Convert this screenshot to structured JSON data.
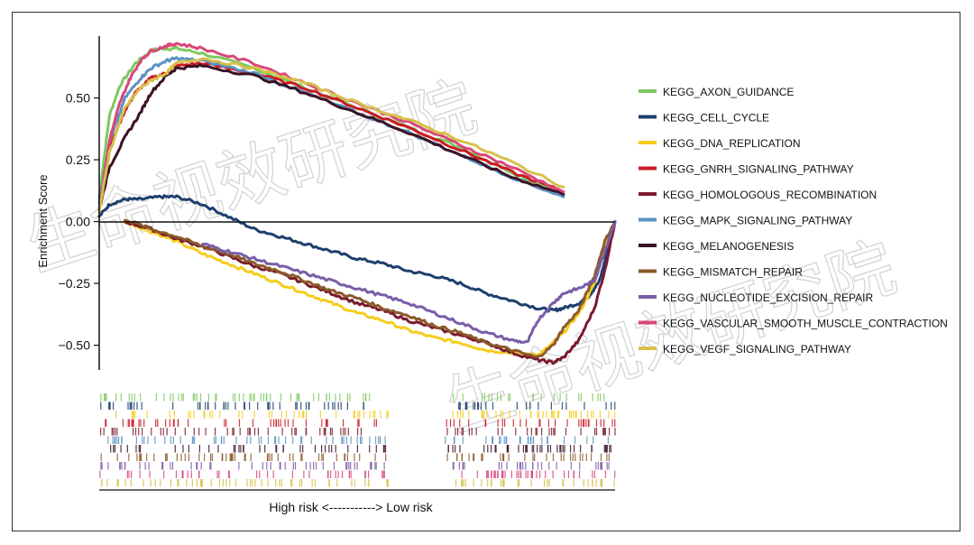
{
  "chart_data": {
    "type": "line",
    "ylabel": "Enrichment Score",
    "ylim": [
      -0.6,
      0.75
    ],
    "yticks": [
      "0.50",
      "0.25",
      "0.00",
      "−0.25",
      "−0.50"
    ],
    "ytick_values": [
      0.5,
      0.25,
      0.0,
      -0.25,
      -0.5
    ],
    "x_caption": "High risk <-----------> Low risk",
    "xlim": [
      0,
      1
    ],
    "legend_position": "right",
    "watermark": "生命视效研究院",
    "series": [
      {
        "name": "KEGG_AXON_GUIDANCE",
        "color": "#7dc95e",
        "x": [
          0,
          0.02,
          0.04,
          0.07,
          0.1,
          0.12,
          0.15,
          0.2,
          0.3,
          0.4,
          0.5,
          0.6,
          0.7,
          0.8,
          0.9
        ],
        "y": [
          0.1,
          0.43,
          0.55,
          0.64,
          0.69,
          0.7,
          0.7,
          0.68,
          0.62,
          0.54,
          0.46,
          0.38,
          0.3,
          0.2,
          0.11
        ]
      },
      {
        "name": "KEGG_CELL_CYCLE",
        "color": "#1e3f6e",
        "x": [
          0,
          0.02,
          0.05,
          0.08,
          0.12,
          0.15,
          0.2,
          0.25,
          0.3,
          0.35,
          0.4,
          0.45,
          0.5,
          0.55,
          0.6,
          0.65,
          0.7,
          0.75,
          0.8,
          0.85,
          0.88,
          0.9,
          0.93,
          0.95,
          0.97,
          0.985,
          1.0
        ],
        "y": [
          0.02,
          0.07,
          0.09,
          0.09,
          0.1,
          0.1,
          0.07,
          0.02,
          -0.03,
          -0.06,
          -0.09,
          -0.12,
          -0.15,
          -0.17,
          -0.2,
          -0.22,
          -0.25,
          -0.29,
          -0.32,
          -0.35,
          -0.36,
          -0.35,
          -0.33,
          -0.3,
          -0.24,
          -0.12,
          0.0
        ]
      },
      {
        "name": "KEGG_DNA_REPLICATION",
        "color": "#f5cd1e",
        "x": [
          0.05,
          0.1,
          0.15,
          0.2,
          0.25,
          0.3,
          0.35,
          0.4,
          0.45,
          0.5,
          0.55,
          0.6,
          0.65,
          0.7,
          0.75,
          0.8,
          0.85,
          0.87,
          0.9,
          0.93,
          0.96,
          0.98,
          1.0
        ],
        "y": [
          0.0,
          -0.04,
          -0.08,
          -0.13,
          -0.17,
          -0.21,
          -0.25,
          -0.29,
          -0.33,
          -0.37,
          -0.4,
          -0.44,
          -0.47,
          -0.49,
          -0.52,
          -0.53,
          -0.54,
          -0.51,
          -0.45,
          -0.37,
          -0.25,
          -0.1,
          0.0
        ]
      },
      {
        "name": "KEGG_GNRH_SIGNALING_PATHWAY",
        "color": "#cc1a24",
        "x": [
          0,
          0.02,
          0.05,
          0.07,
          0.1,
          0.13,
          0.15,
          0.2,
          0.3,
          0.4,
          0.5,
          0.6,
          0.7,
          0.8,
          0.9
        ],
        "y": [
          0.05,
          0.3,
          0.45,
          0.52,
          0.58,
          0.6,
          0.63,
          0.64,
          0.6,
          0.54,
          0.46,
          0.38,
          0.29,
          0.2,
          0.12
        ]
      },
      {
        "name": "KEGG_HOMOLOGOUS_RECOMBINATION",
        "color": "#7a1a2e",
        "x": [
          0.05,
          0.1,
          0.15,
          0.2,
          0.25,
          0.3,
          0.35,
          0.4,
          0.45,
          0.5,
          0.55,
          0.6,
          0.65,
          0.7,
          0.75,
          0.8,
          0.85,
          0.88,
          0.9,
          0.93,
          0.96,
          0.98,
          1.0
        ],
        "y": [
          0.0,
          -0.03,
          -0.07,
          -0.1,
          -0.14,
          -0.18,
          -0.21,
          -0.25,
          -0.29,
          -0.33,
          -0.36,
          -0.4,
          -0.43,
          -0.46,
          -0.49,
          -0.53,
          -0.56,
          -0.57,
          -0.55,
          -0.48,
          -0.35,
          -0.2,
          0.0
        ]
      },
      {
        "name": "KEGG_MAPK_SIGNALING_PATHWAY",
        "color": "#5b92c4",
        "x": [
          0,
          0.02,
          0.05,
          0.08,
          0.1,
          0.13,
          0.15,
          0.2,
          0.3,
          0.4,
          0.5,
          0.6,
          0.7,
          0.8,
          0.9
        ],
        "y": [
          0.08,
          0.32,
          0.5,
          0.58,
          0.62,
          0.65,
          0.66,
          0.65,
          0.6,
          0.52,
          0.44,
          0.36,
          0.27,
          0.18,
          0.1
        ]
      },
      {
        "name": "KEGG_MELANOGENESIS",
        "color": "#3a1225",
        "x": [
          0,
          0.02,
          0.05,
          0.08,
          0.1,
          0.13,
          0.15,
          0.2,
          0.3,
          0.4,
          0.5,
          0.6,
          0.7,
          0.8,
          0.9
        ],
        "y": [
          0.05,
          0.22,
          0.34,
          0.44,
          0.52,
          0.59,
          0.62,
          0.63,
          0.59,
          0.52,
          0.44,
          0.36,
          0.27,
          0.18,
          0.11
        ]
      },
      {
        "name": "KEGG_MISMATCH_REPAIR",
        "color": "#8b5a2b",
        "x": [
          0.05,
          0.1,
          0.15,
          0.2,
          0.25,
          0.3,
          0.35,
          0.4,
          0.45,
          0.5,
          0.55,
          0.6,
          0.65,
          0.7,
          0.75,
          0.8,
          0.85,
          0.88,
          0.9,
          0.93,
          0.96,
          0.98,
          1.0
        ],
        "y": [
          0.01,
          -0.03,
          -0.06,
          -0.1,
          -0.13,
          -0.17,
          -0.2,
          -0.24,
          -0.28,
          -0.31,
          -0.35,
          -0.38,
          -0.42,
          -0.45,
          -0.49,
          -0.52,
          -0.55,
          -0.5,
          -0.43,
          -0.36,
          -0.22,
          -0.08,
          0.0
        ]
      },
      {
        "name": "KEGG_NUCLEOTIDE_EXCISION_REPAIR",
        "color": "#7a5ea8",
        "x": [
          0.2,
          0.25,
          0.3,
          0.35,
          0.4,
          0.45,
          0.5,
          0.55,
          0.6,
          0.65,
          0.7,
          0.75,
          0.8,
          0.83,
          0.85,
          0.88,
          0.9,
          0.93,
          0.96,
          0.98,
          1.0
        ],
        "y": [
          -0.09,
          -0.12,
          -0.15,
          -0.18,
          -0.21,
          -0.24,
          -0.27,
          -0.3,
          -0.33,
          -0.37,
          -0.41,
          -0.45,
          -0.48,
          -0.49,
          -0.4,
          -0.33,
          -0.29,
          -0.27,
          -0.24,
          -0.12,
          0.0
        ]
      },
      {
        "name": "KEGG_VASCULAR_SMOOTH_MUSCLE_CONTRACTION",
        "color": "#d9477a",
        "x": [
          0,
          0.02,
          0.04,
          0.06,
          0.08,
          0.1,
          0.13,
          0.15,
          0.2,
          0.3,
          0.4,
          0.5,
          0.6,
          0.7,
          0.8,
          0.9
        ],
        "y": [
          0.05,
          0.33,
          0.48,
          0.58,
          0.65,
          0.69,
          0.71,
          0.72,
          0.7,
          0.64,
          0.56,
          0.48,
          0.4,
          0.31,
          0.22,
          0.12
        ]
      },
      {
        "name": "KEGG_VEGF_SIGNALING_PATHWAY",
        "color": "#d7c04a",
        "x": [
          0,
          0.02,
          0.05,
          0.08,
          0.1,
          0.13,
          0.15,
          0.2,
          0.3,
          0.4,
          0.5,
          0.6,
          0.7,
          0.8,
          0.9
        ],
        "y": [
          0.04,
          0.28,
          0.46,
          0.54,
          0.57,
          0.6,
          0.64,
          0.66,
          0.62,
          0.56,
          0.48,
          0.41,
          0.33,
          0.24,
          0.14
        ]
      }
    ]
  }
}
